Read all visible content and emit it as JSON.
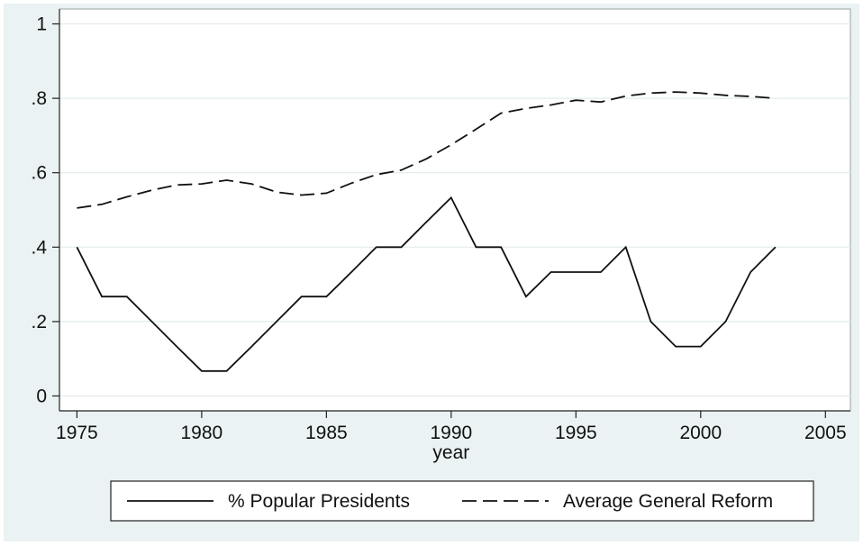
{
  "chart_data": {
    "type": "line",
    "xlabel": "year",
    "ylabel": "",
    "xlim": [
      1974.3,
      2006
    ],
    "ylim": [
      -0.04,
      1.04
    ],
    "xticks": [
      1975,
      1980,
      1985,
      1990,
      1995,
      2000,
      2005
    ],
    "xtick_labels": [
      "1975",
      "1980",
      "1985",
      "1990",
      "1995",
      "2000",
      "2005"
    ],
    "yticks": [
      0,
      0.2,
      0.4,
      0.6,
      0.8,
      1
    ],
    "ytick_labels": [
      "0",
      ".2",
      ".4",
      ".6",
      ".8",
      "1"
    ],
    "grid": "horizontal",
    "legend_position": "bottom",
    "series": [
      {
        "name": "% Popular Presidents",
        "style": "solid",
        "color": "#111111",
        "x": [
          1975,
          1976,
          1977,
          1978,
          1979,
          1980,
          1981,
          1982,
          1983,
          1984,
          1985,
          1986,
          1987,
          1988,
          1989,
          1990,
          1991,
          1992,
          1993,
          1994,
          1995,
          1996,
          1997,
          1998,
          1999,
          2000,
          2001,
          2002,
          2003
        ],
        "y": [
          0.4,
          0.267,
          0.267,
          0.2,
          0.133,
          0.067,
          0.067,
          0.133,
          0.2,
          0.267,
          0.267,
          0.333,
          0.4,
          0.4,
          0.467,
          0.533,
          0.4,
          0.4,
          0.267,
          0.333,
          0.333,
          0.333,
          0.4,
          0.2,
          0.133,
          0.133,
          0.2,
          0.333,
          0.4
        ]
      },
      {
        "name": "Average General Reform",
        "style": "dashed",
        "color": "#111111",
        "x": [
          1975,
          1976,
          1977,
          1978,
          1979,
          1980,
          1981,
          1982,
          1983,
          1984,
          1985,
          1986,
          1987,
          1988,
          1989,
          1990,
          1991,
          1992,
          1993,
          1994,
          1995,
          1996,
          1997,
          1998,
          1999,
          2000,
          2001,
          2002,
          2003
        ],
        "y": [
          0.505,
          0.515,
          0.535,
          0.553,
          0.567,
          0.57,
          0.58,
          0.57,
          0.548,
          0.54,
          0.545,
          0.572,
          0.595,
          0.607,
          0.637,
          0.675,
          0.717,
          0.76,
          0.773,
          0.782,
          0.795,
          0.79,
          0.806,
          0.814,
          0.817,
          0.814,
          0.808,
          0.805,
          0.8
        ]
      }
    ]
  }
}
